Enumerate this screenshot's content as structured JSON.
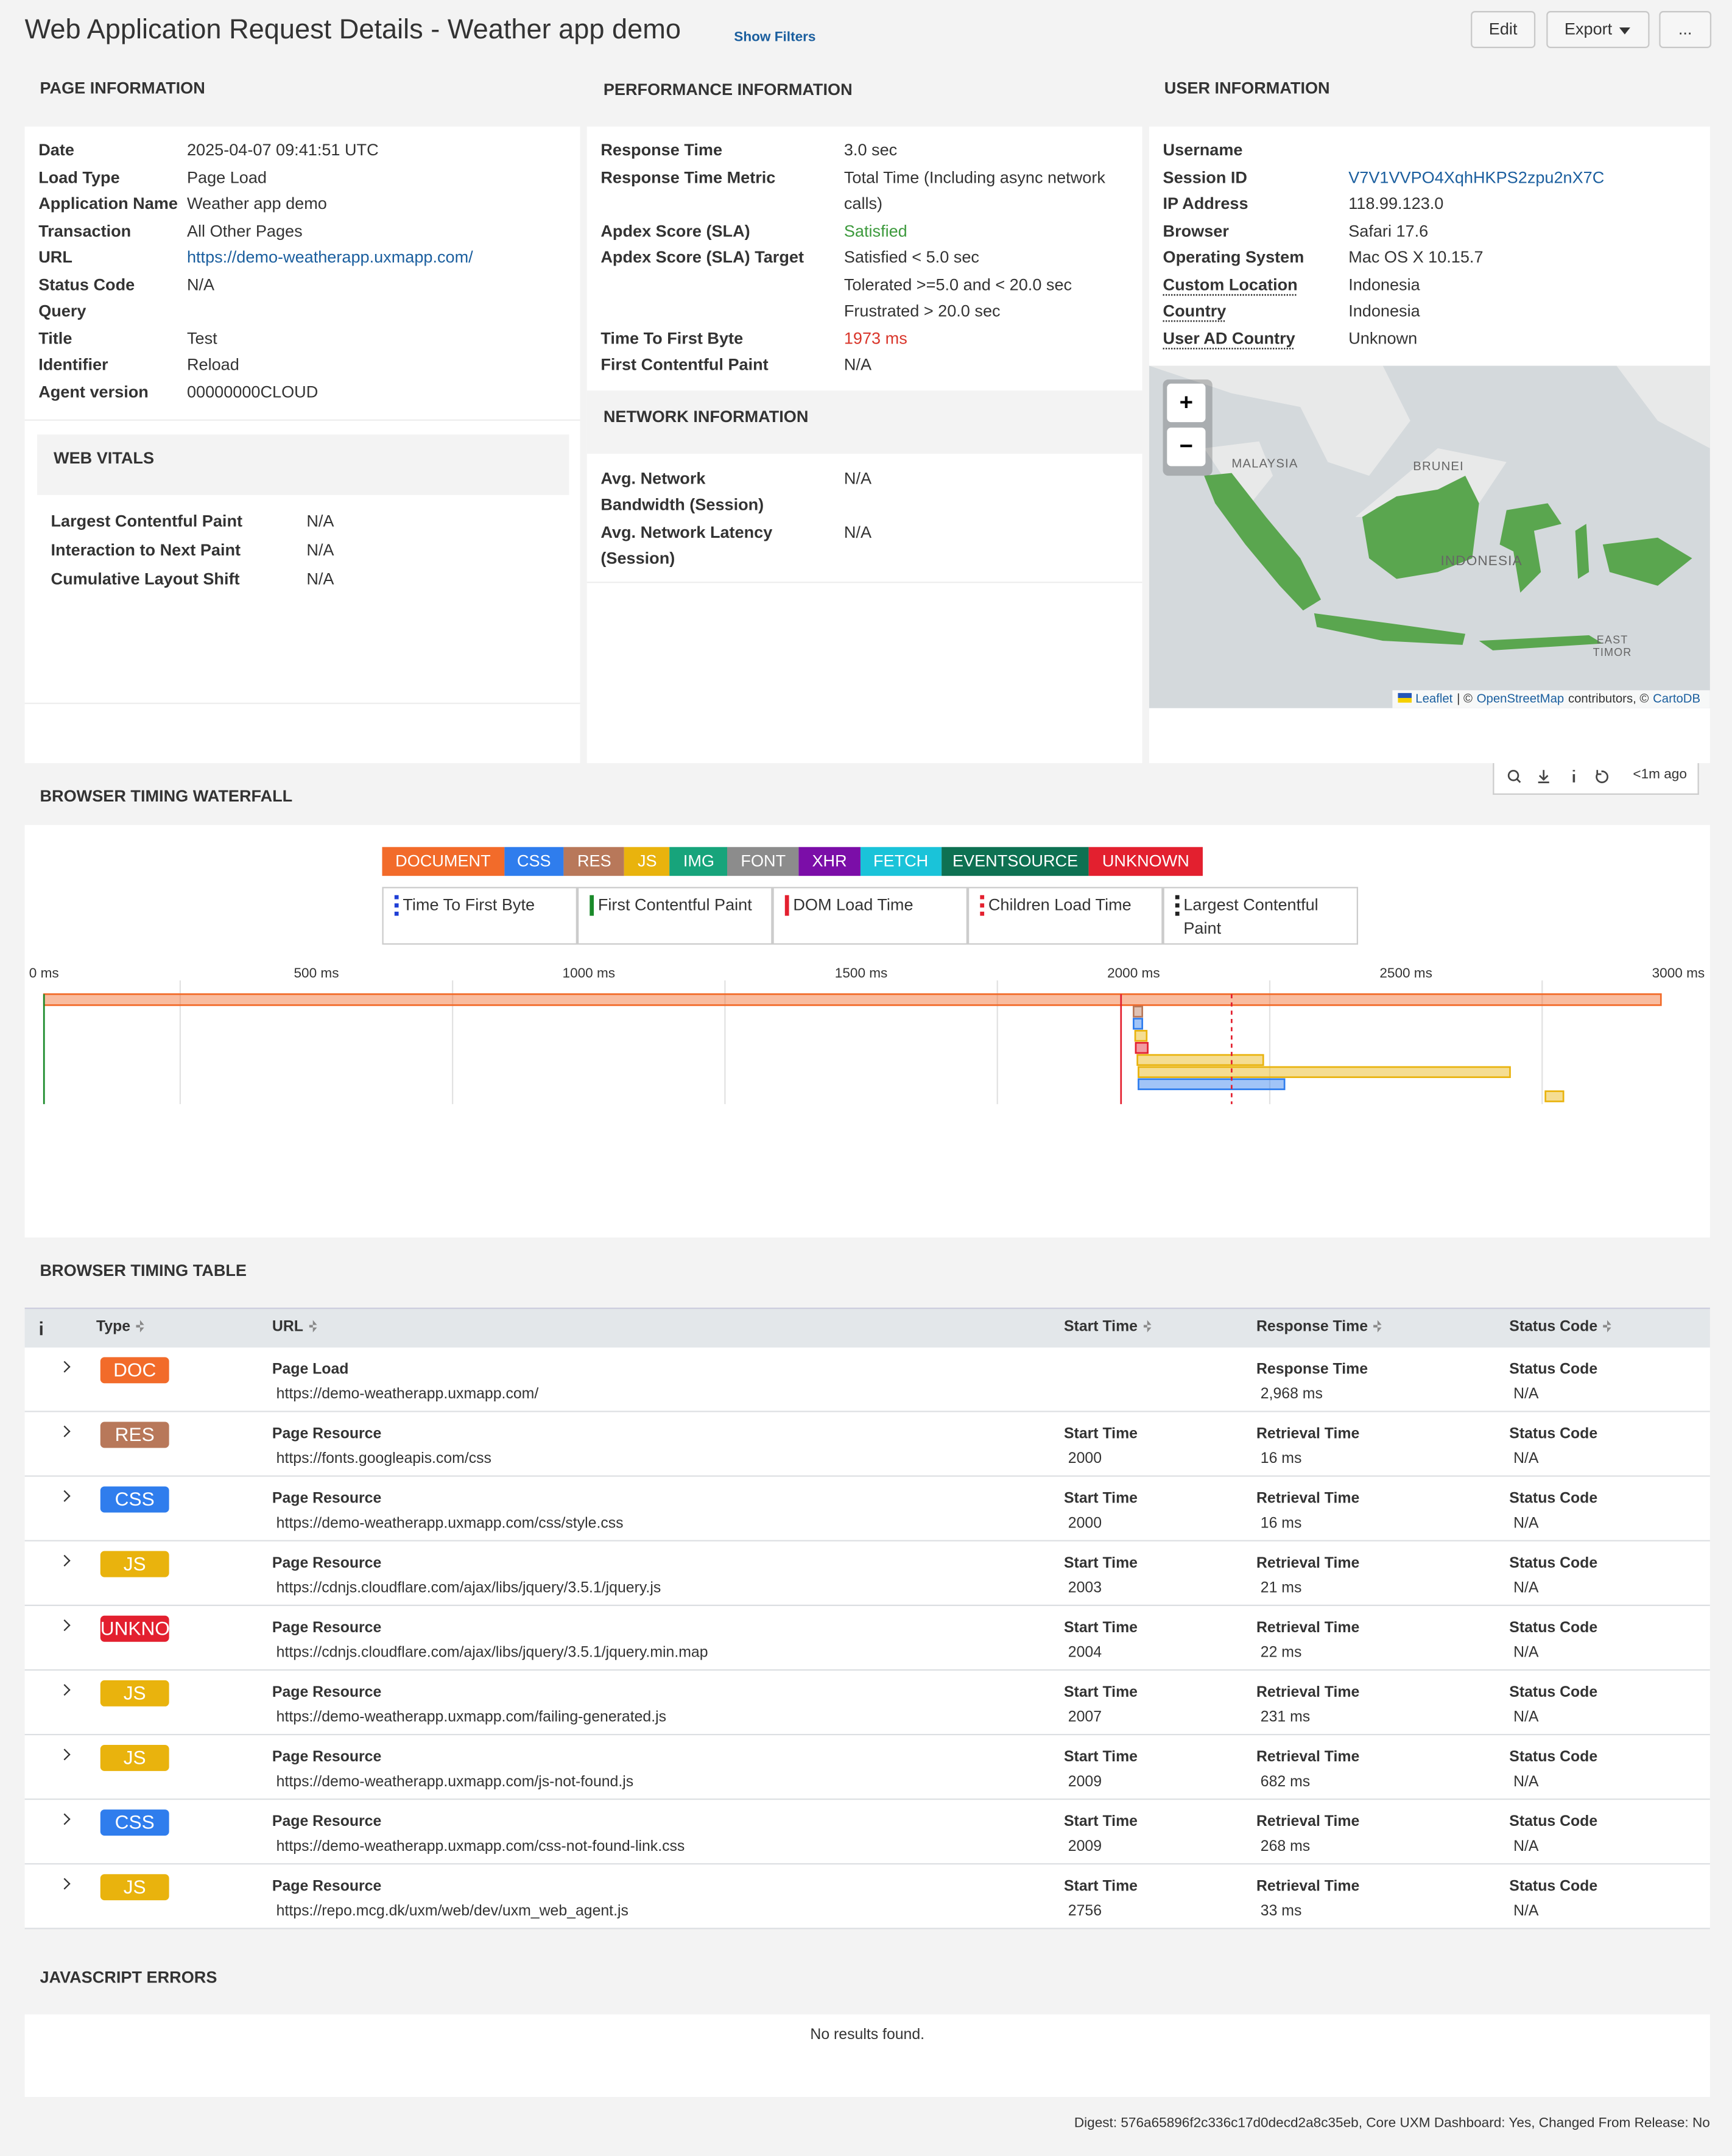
{
  "header": {
    "title": "Web Application Request Details - Weather app demo",
    "show_filters": "Show Filters",
    "buttons": [
      "Edit",
      "Export",
      "..."
    ]
  },
  "page_information": {
    "heading": "PAGE INFORMATION",
    "rows": [
      [
        "Date",
        "2025-04-07 09:41:51 UTC"
      ],
      [
        "Load Type",
        "Page Load"
      ],
      [
        "Application Name",
        "Weather app demo"
      ],
      [
        "Transaction",
        "All Other Pages"
      ],
      [
        "URL",
        "https://demo-weatherapp.uxmapp.com/"
      ],
      [
        "Status Code",
        "N/A"
      ],
      [
        "Query"
      ],
      [
        "Title",
        "Test"
      ],
      [
        "Identifier",
        "Reload"
      ],
      [
        "Agent version",
        "00000000CLOUD"
      ]
    ]
  },
  "web_vitals": {
    "heading": "WEB VITALS",
    "rows": [
      [
        "Largest Contentful Paint",
        "N/A"
      ],
      [
        "Interaction to Next Paint",
        "N/A"
      ],
      [
        "Cumulative Layout Shift",
        "N/A"
      ]
    ]
  },
  "performance_information": {
    "heading": "PERFORMANCE INFORMATION",
    "rows": [
      [
        "Response Time",
        "3.0 sec"
      ],
      [
        "Response Time Metric",
        "Total Time (Including async network calls)"
      ],
      [
        "Apdex Score (SLA)",
        "Satisfied"
      ],
      [
        "Apdex Score (SLA) Target",
        "Satisfied < 5.0 sec",
        "Tolerated >=5.0 and < 20.0 sec",
        "Frustrated > 20.0 sec"
      ],
      [
        "Time To First Byte",
        "1973 ms"
      ],
      [
        "First Contentful Paint",
        "N/A"
      ]
    ]
  },
  "network_information": {
    "heading": "NETWORK INFORMATION",
    "rows": [
      [
        "Avg. Network Bandwidth (Session)",
        "N/A"
      ],
      [
        "Avg. Network Latency (Session)",
        "N/A"
      ]
    ]
  },
  "user_information": {
    "heading": "USER INFORMATION",
    "rows": [
      [
        "Username"
      ],
      [
        "Session ID",
        "V7V1VVPO4XqhHKPS2zpu2nX7C"
      ],
      [
        "IP Address",
        "118.99.123.0"
      ],
      [
        "Browser",
        "Safari 17.6"
      ],
      [
        "Operating System",
        "Mac OS X 10.15.7"
      ],
      [
        "Custom Location",
        "Indonesia"
      ],
      [
        "Country",
        "Indonesia"
      ],
      [
        "User AD Country",
        "Unknown"
      ]
    ]
  },
  "map": {
    "labels": [
      "MALAYSIA",
      "BRUNEI",
      "INDONESIA",
      "EAST TIMOR"
    ],
    "zoom": [
      "+",
      "−"
    ],
    "attribution": [
      "Leaflet",
      "| ©",
      "OpenStreetMap",
      "contributors, ©",
      "CartoDB"
    ]
  },
  "toolbar": {
    "updated": "<1m ago"
  },
  "waterfall": {
    "heading": "BROWSER TIMING WATERFALL",
    "types": [
      {
        "name": "DOCUMENT",
        "color": "#f26b2a"
      },
      {
        "name": "CSS",
        "color": "#2f7ded"
      },
      {
        "name": "RES",
        "color": "#b8785a"
      },
      {
        "name": "JS",
        "color": "#e9b30d"
      },
      {
        "name": "IMG",
        "color": "#17a47b"
      },
      {
        "name": "FONT",
        "color": "#8c8c8c"
      },
      {
        "name": "XHR",
        "color": "#7b0ea8"
      },
      {
        "name": "FETCH",
        "color": "#1ac3d9"
      },
      {
        "name": "EVENTSOURCE",
        "color": "#0e7152"
      },
      {
        "name": "UNKNOWN",
        "color": "#e3202f"
      }
    ],
    "markers": [
      {
        "name": "Time To First Byte",
        "color": "#1f3fd6",
        "style": "dotted"
      },
      {
        "name": "First Contentful Paint",
        "color": "#1a8a2a",
        "style": "solid",
        "value": 0
      },
      {
        "name": "DOM Load Time",
        "color": "#e3202f",
        "style": "solid",
        "value": 1977
      },
      {
        "name": "Children Load Time",
        "color": "#e3202f",
        "style": "dotted",
        "value": 2180
      },
      {
        "name": "Largest Contentful Paint",
        "color": "#222222",
        "style": "dotted"
      }
    ],
    "xlim": [
      0,
      3000
    ],
    "xticks": [
      {
        "value": 0,
        "label": "0 ms"
      },
      {
        "value": 500,
        "label": "500 ms"
      },
      {
        "value": 1000,
        "label": "1000 ms"
      },
      {
        "value": 1500,
        "label": "1500 ms"
      },
      {
        "value": 2000,
        "label": "2000 ms"
      },
      {
        "value": 2500,
        "label": "2500 ms"
      },
      {
        "value": 3000,
        "label": "3000 ms"
      }
    ],
    "xgrid": [
      250,
      750,
      1250,
      1750,
      2250,
      2750
    ],
    "bars": [
      {
        "color": "#f26b2a",
        "start": 0,
        "duration": 2968
      },
      {
        "color": "#b8785a",
        "start": 2000,
        "duration": 16
      },
      {
        "color": "#2f7ded",
        "start": 2000,
        "duration": 16
      },
      {
        "color": "#e9b30d",
        "start": 2003,
        "duration": 21
      },
      {
        "color": "#e3202f",
        "start": 2004,
        "duration": 22
      },
      {
        "color": "#e9b30d",
        "start": 2007,
        "duration": 231
      },
      {
        "color": "#e9b30d",
        "start": 2009,
        "duration": 682
      },
      {
        "color": "#2f7ded",
        "start": 2009,
        "duration": 268
      },
      {
        "color": "#e9b30d",
        "start": 2756,
        "duration": 33
      }
    ]
  },
  "timing_table": {
    "heading": "BROWSER TIMING TABLE",
    "columns": [
      "Type",
      "URL",
      "Start Time",
      "Response Time",
      "Status Code"
    ],
    "rows": [
      {
        "type": "DOC",
        "color": "#f26b2a",
        "url": [
          "Page Load",
          "https://demo-weatherapp.uxmapp.com/"
        ],
        "time": [
          "Response Time",
          "2,968 ms"
        ],
        "status": [
          "Status Code",
          "N/A"
        ]
      },
      {
        "type": "RES",
        "color": "#b8785a",
        "url": [
          "Page Resource",
          "https://fonts.googleapis.com/css"
        ],
        "start": [
          "Start Time",
          "2000"
        ],
        "time": [
          "Retrieval Time",
          "16 ms"
        ],
        "status": [
          "Status Code",
          "N/A"
        ]
      },
      {
        "type": "CSS",
        "color": "#2f7ded",
        "url": [
          "Page Resource",
          "https://demo-weatherapp.uxmapp.com/css/style.css"
        ],
        "start": [
          "Start Time",
          "2000"
        ],
        "time": [
          "Retrieval Time",
          "16 ms"
        ],
        "status": [
          "Status Code",
          "N/A"
        ]
      },
      {
        "type": "JS",
        "color": "#e9b30d",
        "url": [
          "Page Resource",
          "https://cdnjs.cloudflare.com/ajax/libs/jquery/3.5.1/jquery.js"
        ],
        "start": [
          "Start Time",
          "2003"
        ],
        "time": [
          "Retrieval Time",
          "21 ms"
        ],
        "status": [
          "Status Code",
          "N/A"
        ]
      },
      {
        "type": "UNKNOWN",
        "color": "#e3202f",
        "url": [
          "Page Resource",
          "https://cdnjs.cloudflare.com/ajax/libs/jquery/3.5.1/jquery.min.map"
        ],
        "start": [
          "Start Time",
          "2004"
        ],
        "time": [
          "Retrieval Time",
          "22 ms"
        ],
        "status": [
          "Status Code",
          "N/A"
        ]
      },
      {
        "type": "JS",
        "color": "#e9b30d",
        "url": [
          "Page Resource",
          "https://demo-weatherapp.uxmapp.com/failing-generated.js"
        ],
        "start": [
          "Start Time",
          "2007"
        ],
        "time": [
          "Retrieval Time",
          "231 ms"
        ],
        "status": [
          "Status Code",
          "N/A"
        ]
      },
      {
        "type": "JS",
        "color": "#e9b30d",
        "url": [
          "Page Resource",
          "https://demo-weatherapp.uxmapp.com/js-not-found.js"
        ],
        "start": [
          "Start Time",
          "2009"
        ],
        "time": [
          "Retrieval Time",
          "682 ms"
        ],
        "status": [
          "Status Code",
          "N/A"
        ]
      },
      {
        "type": "CSS",
        "color": "#2f7ded",
        "url": [
          "Page Resource",
          "https://demo-weatherapp.uxmapp.com/css-not-found-link.css"
        ],
        "start": [
          "Start Time",
          "2009"
        ],
        "time": [
          "Retrieval Time",
          "268 ms"
        ],
        "status": [
          "Status Code",
          "N/A"
        ]
      },
      {
        "type": "JS",
        "color": "#e9b30d",
        "url": [
          "Page Resource",
          "https://repo.mcg.dk/uxm/web/dev/uxm_web_agent.js"
        ],
        "start": [
          "Start Time",
          "2756"
        ],
        "time": [
          "Retrieval Time",
          "33 ms"
        ],
        "status": [
          "Status Code",
          "N/A"
        ]
      }
    ]
  },
  "javascript_errors": {
    "heading": "JAVASCRIPT ERRORS",
    "empty": "No results found."
  },
  "footer": "Digest: 576a65896f2c336c17d0decd2a8c35eb, Core UXM Dashboard: Yes, Changed From Release: No"
}
